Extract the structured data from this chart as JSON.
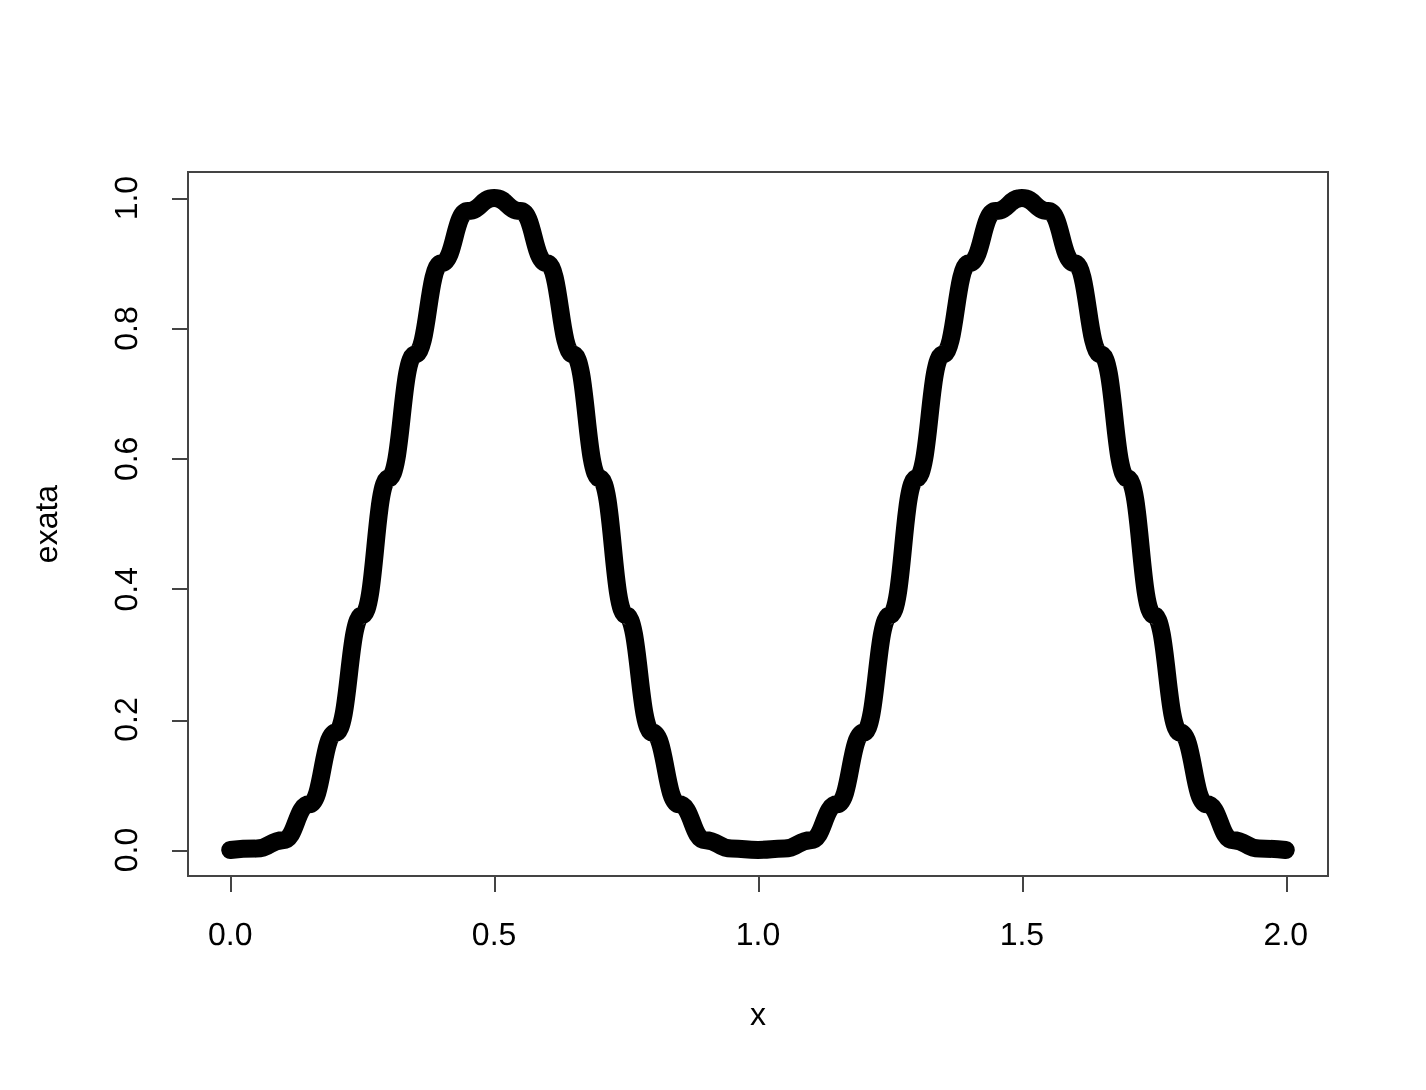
{
  "chart_data": {
    "type": "line",
    "xlabel": "x",
    "ylabel": "exata",
    "line_style": "solid",
    "grid": false,
    "x": [
      0,
      0.05,
      0.1,
      0.15,
      0.2,
      0.25,
      0.3,
      0.35,
      0.4,
      0.45,
      0.5,
      0.55,
      0.6,
      0.65,
      0.7,
      0.75,
      0.8,
      0.85,
      0.9,
      0.95,
      1.0,
      1.05,
      1.1,
      1.15,
      1.2,
      1.25,
      1.3,
      1.35,
      1.4,
      1.45,
      1.5,
      1.55,
      1.6,
      1.65,
      1.7,
      1.75,
      1.8,
      1.85,
      1.9,
      1.95,
      2.0
    ],
    "series": [
      {
        "color": "#000000",
        "values": [
          0,
          0.002,
          0.015,
          0.07,
          0.18,
          0.36,
          0.57,
          0.76,
          0.9,
          0.98,
          1.0,
          0.98,
          0.9,
          0.76,
          0.57,
          0.36,
          0.18,
          0.07,
          0.015,
          0.002,
          0,
          0.002,
          0.015,
          0.07,
          0.18,
          0.36,
          0.57,
          0.76,
          0.9,
          0.98,
          1.0,
          0.98,
          0.9,
          0.76,
          0.57,
          0.36,
          0.18,
          0.07,
          0.015,
          0.002,
          0
        ]
      }
    ],
    "xlim": [
      -0.08,
      2.08
    ],
    "ylim": [
      -0.04,
      1.04
    ],
    "xticks": [
      {
        "value": 0,
        "label": "0.0"
      },
      {
        "value": 0.5,
        "label": "0.5"
      },
      {
        "value": 1,
        "label": "1.0"
      },
      {
        "value": 1.5,
        "label": "1.5"
      },
      {
        "value": 2,
        "label": "2.0"
      }
    ],
    "yticks": [
      {
        "value": 0,
        "label": "0.0"
      },
      {
        "value": 0.2,
        "label": "0.2"
      },
      {
        "value": 0.4,
        "label": "0.4"
      },
      {
        "value": 0.6,
        "label": "0.6"
      },
      {
        "value": 0.8,
        "label": "0.8"
      },
      {
        "value": 1,
        "label": "1.0"
      }
    ]
  }
}
